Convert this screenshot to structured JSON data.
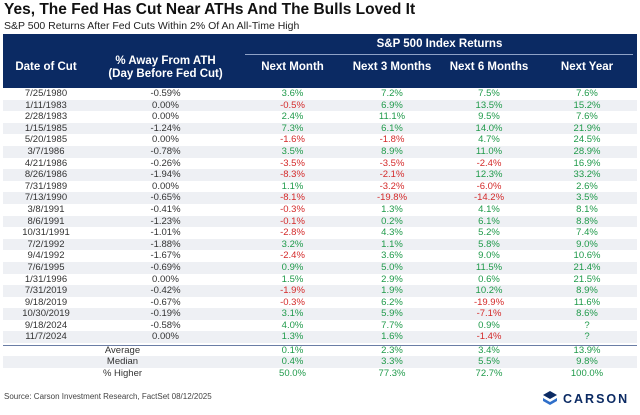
{
  "title": "Yes, The Fed Has Cut Near ATHs And The Bulls Loved It",
  "subtitle": "S&P 500 Returns After Fed Cuts Within 2% Of An All-Time High",
  "header": {
    "group_label": "S&P 500 Index Returns",
    "col_date": "Date of Cut",
    "col_away_line1": "% Away From ATH",
    "col_away_line2": "(Day Before Fed Cut)",
    "col_1m": "Next Month",
    "col_3m": "Next 3 Months",
    "col_6m": "Next 6 Months",
    "col_1y": "Next Year"
  },
  "chart_data": {
    "type": "table",
    "columns": [
      "Date of Cut",
      "% Away From ATH (Day Before Fed Cut)",
      "Next Month",
      "Next 3 Months",
      "Next 6 Months",
      "Next Year"
    ],
    "rows": [
      [
        "7/25/1980",
        "-0.59%",
        "3.6%",
        "7.2%",
        "7.5%",
        "7.6%"
      ],
      [
        "1/11/1983",
        "0.00%",
        "-0.5%",
        "6.9%",
        "13.5%",
        "15.2%"
      ],
      [
        "2/28/1983",
        "0.00%",
        "2.4%",
        "11.1%",
        "9.5%",
        "7.6%"
      ],
      [
        "1/15/1985",
        "-1.24%",
        "7.3%",
        "6.1%",
        "14.0%",
        "21.9%"
      ],
      [
        "5/20/1985",
        "0.00%",
        "-1.6%",
        "-1.8%",
        "4.7%",
        "24.5%"
      ],
      [
        "3/7/1986",
        "-0.78%",
        "3.5%",
        "8.9%",
        "11.0%",
        "28.9%"
      ],
      [
        "4/21/1986",
        "-0.26%",
        "-3.5%",
        "-3.5%",
        "-2.4%",
        "16.9%"
      ],
      [
        "8/26/1986",
        "-1.94%",
        "-8.3%",
        "-2.1%",
        "12.3%",
        "33.2%"
      ],
      [
        "7/31/1989",
        "0.00%",
        "1.1%",
        "-3.2%",
        "-6.0%",
        "2.6%"
      ],
      [
        "7/13/1990",
        "-0.65%",
        "-8.1%",
        "-19.8%",
        "-14.2%",
        "3.5%"
      ],
      [
        "3/8/1991",
        "-0.41%",
        "-0.3%",
        "1.3%",
        "4.1%",
        "8.1%"
      ],
      [
        "8/6/1991",
        "-1.23%",
        "-0.1%",
        "0.2%",
        "6.1%",
        "8.8%"
      ],
      [
        "10/31/1991",
        "-1.01%",
        "-2.8%",
        "4.3%",
        "5.2%",
        "7.4%"
      ],
      [
        "7/2/1992",
        "-1.88%",
        "3.2%",
        "1.1%",
        "5.8%",
        "9.0%"
      ],
      [
        "9/4/1992",
        "-1.67%",
        "-2.4%",
        "3.6%",
        "9.0%",
        "10.6%"
      ],
      [
        "7/6/1995",
        "-0.69%",
        "0.9%",
        "5.0%",
        "11.5%",
        "21.4%"
      ],
      [
        "1/31/1996",
        "0.00%",
        "1.5%",
        "2.9%",
        "0.6%",
        "21.5%"
      ],
      [
        "7/31/2019",
        "-0.42%",
        "-1.9%",
        "1.9%",
        "10.2%",
        "8.9%"
      ],
      [
        "9/18/2019",
        "-0.67%",
        "-0.3%",
        "6.2%",
        "-19.9%",
        "11.6%"
      ],
      [
        "10/30/2019",
        "-0.19%",
        "3.1%",
        "5.9%",
        "-7.1%",
        "8.6%"
      ],
      [
        "9/18/2024",
        "-0.58%",
        "4.0%",
        "7.7%",
        "0.9%",
        "?"
      ],
      [
        "11/7/2024",
        "0.00%",
        "1.3%",
        "1.6%",
        "-1.4%",
        "?"
      ]
    ],
    "summary": [
      [
        "Average",
        "0.1%",
        "2.3%",
        "3.4%",
        "13.9%"
      ],
      [
        "Median",
        "0.4%",
        "3.3%",
        "5.5%",
        "9.8%"
      ],
      [
        "% Higher",
        "50.0%",
        "77.3%",
        "72.7%",
        "100.0%"
      ]
    ]
  },
  "source": "Source: Carson Investment Research, FactSet 08/12/2025",
  "logo": {
    "text": "CARSON",
    "icon": "carson-logo-icon",
    "color": "#0b2a63"
  },
  "colors": {
    "header_bg": "#0b2a63",
    "positive": "#1f9a4a",
    "negative": "#d42a2a",
    "stripe": "#eef0f4"
  }
}
